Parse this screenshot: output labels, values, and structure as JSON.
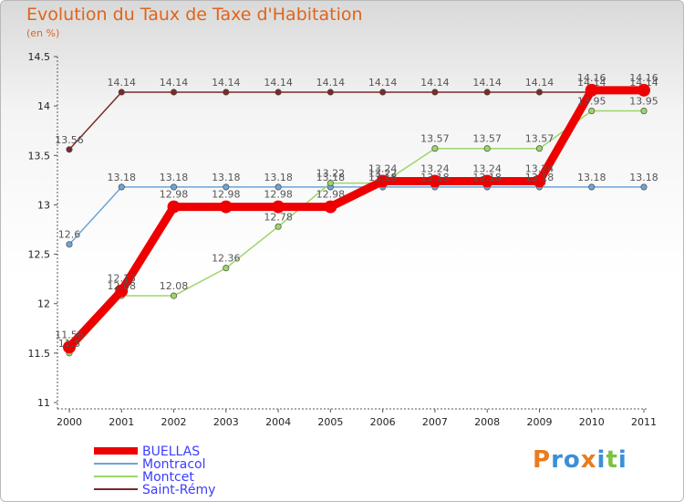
{
  "header": {
    "title": "Evolution du Taux de Taxe d'Habitation",
    "subtitle": "(en %)"
  },
  "logo": {
    "text": "Proxiti",
    "colors": [
      "#e87c1e",
      "#3b8fd6",
      "#7cc242"
    ]
  },
  "chart_data": {
    "type": "line",
    "title": "Evolution du Taux de Taxe d'Habitation",
    "ylabel": "(en %)",
    "xlabel": "",
    "categories": [
      "2000",
      "2001",
      "2002",
      "2003",
      "2004",
      "2005",
      "2006",
      "2007",
      "2008",
      "2009",
      "2010",
      "2011"
    ],
    "ylim": [
      11,
      14.5
    ],
    "yticks": [
      "11",
      "11.5",
      "12",
      "12.5",
      "13",
      "13.5",
      "14",
      "14.5"
    ],
    "ytick_values": [
      11,
      11.5,
      12,
      12.5,
      13,
      13.5,
      14,
      14.5
    ],
    "grid": false,
    "legend_position": "bottom-left",
    "series": [
      {
        "name": "Saint-Rémy",
        "color": "#7a2a2a",
        "width": "thin",
        "values": [
          13.56,
          14.14,
          14.14,
          14.14,
          14.14,
          14.14,
          14.14,
          14.14,
          14.14,
          14.14,
          14.14,
          14.14
        ],
        "labels": [
          "13.56",
          "14.14",
          "14.14",
          "14.14",
          "14.14",
          "14.14",
          "14.14",
          "14.14",
          "14.14",
          "14.14",
          "14.14",
          "14.14"
        ]
      },
      {
        "name": "Montracol",
        "color": "#6ea4d6",
        "width": "thin",
        "values": [
          12.6,
          13.18,
          13.18,
          13.18,
          13.18,
          13.18,
          13.18,
          13.18,
          13.18,
          13.18,
          13.18,
          13.18
        ],
        "labels": [
          "12.6",
          "13.18",
          "13.18",
          "13.18",
          "13.18",
          "13.18",
          "13.18",
          "13.18",
          "13.18",
          "13.18",
          "13.18",
          "13.18"
        ]
      },
      {
        "name": "Montcet",
        "color": "#9bd66a",
        "width": "thin",
        "values": [
          11.5,
          12.08,
          12.08,
          12.36,
          12.78,
          13.22,
          13.22,
          13.57,
          13.57,
          13.57,
          13.95,
          13.95
        ],
        "labels": [
          "11.5",
          "12.08",
          "12.08",
          "12.36",
          "12.78",
          "13.22",
          "13.22",
          "13.57",
          "13.57",
          "13.57",
          "13.95",
          "13.95"
        ]
      },
      {
        "name": "BUELLAS",
        "color": "#ee0000",
        "width": "thick",
        "values": [
          11.56,
          12.13,
          12.98,
          12.98,
          12.98,
          12.98,
          13.24,
          13.24,
          13.24,
          13.24,
          14.16,
          14.16
        ],
        "labels": [
          "11.56",
          "12.13",
          "12.98",
          "12.98",
          "12.98",
          "12.98",
          "13.24",
          "13.24",
          "13.24",
          "13.24",
          "14.16",
          "14.16"
        ]
      }
    ],
    "legend": [
      "BUELLAS",
      "Montracol",
      "Montcet",
      "Saint-Rémy"
    ]
  }
}
